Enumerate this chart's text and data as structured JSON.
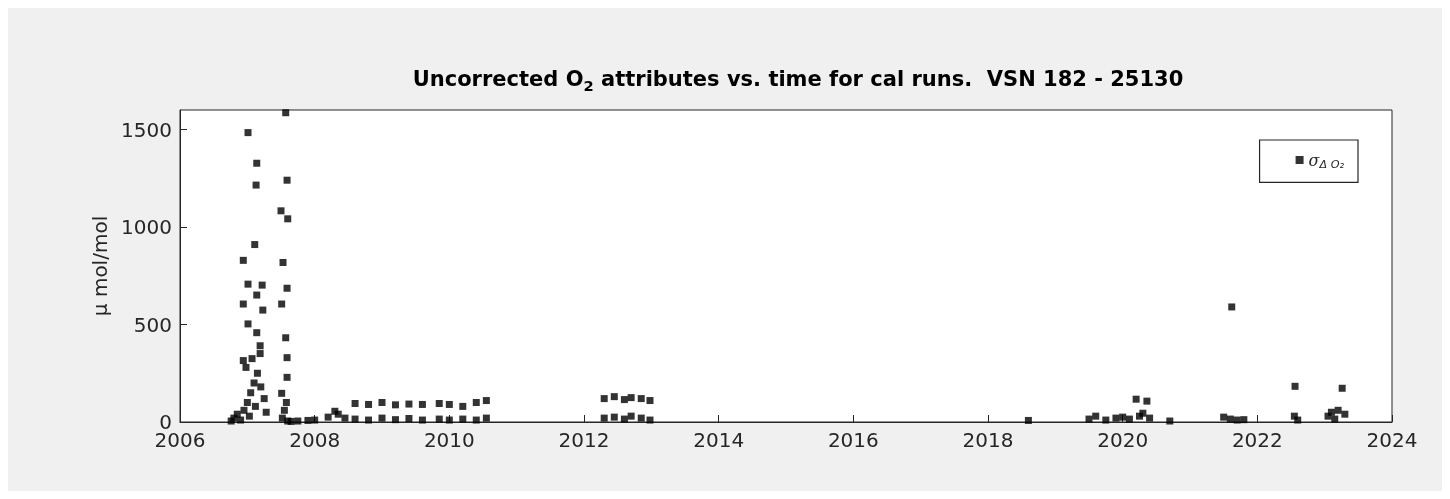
{
  "chart_data": {
    "type": "scatter",
    "title": "Uncorrected O$_{2}$ attributes vs. time for cal runs.  VSN 182 - 25130",
    "ylabel": "μ mol/mol",
    "xlim": [
      2006,
      2024
    ],
    "xticks": [
      2006,
      2008,
      2010,
      2012,
      2014,
      2016,
      2018,
      2020,
      2022,
      2024
    ],
    "ylim": [
      0,
      1600
    ],
    "yticks": [
      0,
      500,
      1000,
      1500
    ],
    "grid": false,
    "legend": "top right",
    "marker": "square",
    "series": [
      {
        "name": "σ$_{Δ O₂}$",
        "color": "#000000",
        "x": [
          2007.01,
          2007.14,
          2007.13,
          2007.11,
          2006.94,
          2007.01,
          2007.22,
          2007.14,
          2006.94,
          2007.23,
          2007.01,
          2007.14,
          2007.19,
          2006.94,
          2007.07,
          2007.19,
          2006.76,
          2006.8,
          2006.85,
          2006.9,
          2006.95,
          2007.0,
          2007.05,
          2007.1,
          2007.15,
          2007.2,
          2007.25,
          2006.98,
          2007.03,
          2007.12,
          2007.28,
          2007.57,
          2007.59,
          2007.5,
          2007.6,
          2007.53,
          2007.59,
          2007.51,
          2007.57,
          2007.59,
          2007.59,
          2007.51,
          2007.52,
          2007.55,
          2007.58,
          2007.6,
          2007.65,
          2007.75,
          2007.9,
          2008.0,
          2008.2,
          2008.35,
          2008.45,
          2008.3,
          2008.6,
          2008.8,
          2009.0,
          2009.2,
          2009.4,
          2009.6,
          2008.6,
          2008.8,
          2009.0,
          2009.2,
          2009.4,
          2009.6,
          2009.85,
          2010.0,
          2009.85,
          2010.0,
          2010.2,
          2010.4,
          2010.55,
          2010.2,
          2010.4,
          2010.55,
          2012.3,
          2012.45,
          2012.6,
          2012.7,
          2012.85,
          2012.98,
          2012.3,
          2012.45,
          2012.6,
          2012.7,
          2012.85,
          2012.98,
          2018.6,
          2019.5,
          2019.6,
          2019.75,
          2019.9,
          2020.0,
          2020.1,
          2020.2,
          2020.25,
          2020.3,
          2020.36,
          2020.4,
          2020.7,
          2021.5,
          2021.6,
          2021.62,
          2021.7,
          2021.8,
          2022.56,
          2022.55,
          2022.6,
          2023.05,
          2023.1,
          2023.2,
          2023.26,
          2023.3,
          2023.15
        ],
        "values": [
          1484,
          1327,
          1215,
          910,
          829,
          707,
          702,
          651,
          605,
          574,
          503,
          458,
          391,
          315,
          325,
          351,
          5,
          20,
          40,
          10,
          60,
          100,
          150,
          200,
          250,
          180,
          120,
          280,
          30,
          80,
          50,
          1586,
          1240,
          1083,
          1042,
          818,
          686,
          605,
          432,
          330,
          229,
          147,
          20,
          60,
          100,
          5,
          3,
          5,
          8,
          10,
          25,
          40,
          20,
          55,
          95,
          90,
          100,
          88,
          92,
          90,
          15,
          10,
          20,
          12,
          18,
          10,
          95,
          90,
          15,
          10,
          80,
          100,
          110,
          15,
          10,
          20,
          120,
          130,
          115,
          125,
          120,
          110,
          20,
          25,
          15,
          30,
          20,
          10,
          8,
          15,
          30,
          10,
          20,
          25,
          15,
          117,
          30,
          45,
          107,
          20,
          5,
          25,
          15,
          590,
          10,
          12,
          183,
          30,
          10,
          30,
          50,
          60,
          173,
          40,
          15
        ]
      }
    ]
  }
}
